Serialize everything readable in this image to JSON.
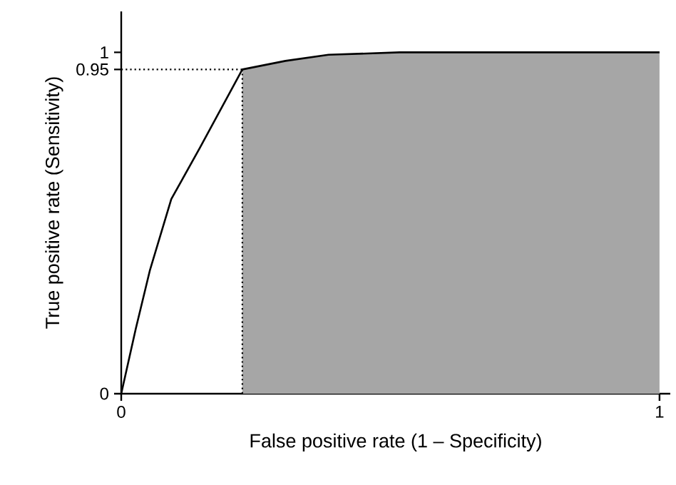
{
  "chart_data": {
    "type": "line",
    "xlabel": "False positive rate (1 – Specificity)",
    "ylabel": "True positive rate (Sensitivity)",
    "xlim": [
      0,
      1.02
    ],
    "ylim": [
      0,
      1.12
    ],
    "xticks": [
      0,
      1
    ],
    "yticks": [
      0,
      0.95,
      1
    ],
    "grid": false,
    "series": [
      {
        "type": "area",
        "color": "#a6a6a6",
        "x": [
          0.225,
          0.305,
          0.385,
          0.517,
          1
        ],
        "values": [
          0.95,
          0.975,
          0.993,
          1.0,
          1.0
        ]
      },
      {
        "color": "#000000",
        "x": [
          0,
          0.027,
          0.053,
          0.093,
          0.146,
          0.225,
          0.305,
          0.385,
          0.517,
          1
        ],
        "values": [
          0,
          0.19,
          0.36,
          0.57,
          0.72,
          0.95,
          0.975,
          0.993,
          1.0,
          1.0
        ]
      }
    ],
    "ref_lines": [
      {
        "axis": "x",
        "value": 0.225,
        "line_style": "dotted"
      },
      {
        "axis": "y",
        "value": 0.95,
        "line_style": "dotted"
      }
    ]
  }
}
